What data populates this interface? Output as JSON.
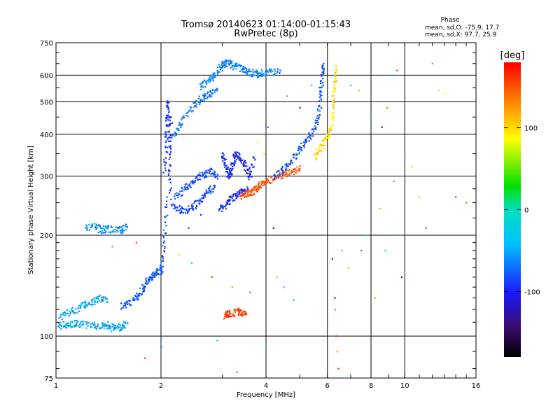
{
  "chart_data": {
    "type": "scatter",
    "title": "Tromsø 20140623 01:14:00-01:15:43",
    "subtitle": "RwPretec (8p)",
    "xlabel": "Frequency [MHz]",
    "ylabel": "Stationary phase Virtual Height [km]",
    "x_scale": "log",
    "y_scale": "log",
    "xlim": [
      1,
      16
    ],
    "ylim": [
      75,
      750
    ],
    "x_ticks": [
      "1",
      "2",
      "4",
      "6",
      "8",
      "10",
      "16"
    ],
    "y_ticks": [
      "75",
      "100",
      "200",
      "300",
      "400",
      "500",
      "600",
      "750"
    ],
    "grid": true,
    "stats": {
      "header": "Phase",
      "line_o": "mean, sd,O: -75.9, 17.7",
      "line_x": "mean, sd,X:  97.7, 25.9"
    },
    "colorbar": {
      "label": "[deg]",
      "ticks": [
        "100",
        "0",
        "-100"
      ],
      "range": [
        -180,
        180
      ],
      "colormap": "rainbow"
    },
    "traces": [
      {
        "phase": -50,
        "points": [
          [
            1.02,
            107
          ],
          [
            1.06,
            108
          ],
          [
            1.1,
            108
          ],
          [
            1.15,
            110
          ],
          [
            1.2,
            108
          ],
          [
            1.28,
            108
          ],
          [
            1.35,
            107
          ],
          [
            1.4,
            108
          ],
          [
            1.45,
            106
          ],
          [
            1.5,
            107
          ],
          [
            1.55,
            106
          ],
          [
            1.6,
            109
          ]
        ]
      },
      {
        "phase": -50,
        "points": [
          [
            1.03,
            115
          ],
          [
            1.08,
            118
          ],
          [
            1.15,
            120
          ],
          [
            1.2,
            124
          ],
          [
            1.25,
            126
          ],
          [
            1.3,
            128
          ],
          [
            1.35,
            130
          ],
          [
            1.4,
            129
          ]
        ]
      },
      {
        "phase": -60,
        "points": [
          [
            1.22,
            210
          ],
          [
            1.3,
            212
          ],
          [
            1.35,
            208
          ],
          [
            1.4,
            209
          ],
          [
            1.48,
            207
          ],
          [
            1.55,
            208
          ],
          [
            1.6,
            212
          ]
        ]
      },
      {
        "phase": -80,
        "points": [
          [
            1.55,
            123
          ],
          [
            1.62,
            125
          ],
          [
            1.7,
            130
          ],
          [
            1.75,
            136
          ],
          [
            1.8,
            142
          ],
          [
            1.85,
            148
          ],
          [
            1.9,
            152
          ],
          [
            1.95,
            155
          ],
          [
            2.0,
            157
          ],
          [
            2.02,
            165
          ],
          [
            2.05,
            200
          ],
          [
            2.08,
            260
          ]
        ]
      },
      {
        "phase": -90,
        "points": [
          [
            2.05,
            310
          ],
          [
            2.07,
            380
          ],
          [
            2.08,
            430
          ],
          [
            2.09,
            480
          ],
          [
            2.1,
            500
          ]
        ]
      },
      {
        "phase": -95,
        "points": [
          [
            2.12,
            270
          ],
          [
            2.12,
            340
          ],
          [
            2.12,
            400
          ],
          [
            2.14,
            450
          ]
        ]
      },
      {
        "phase": -85,
        "points": [
          [
            2.15,
            250
          ],
          [
            2.25,
            240
          ],
          [
            2.35,
            235
          ],
          [
            2.45,
            240
          ],
          [
            2.55,
            250
          ],
          [
            2.65,
            260
          ],
          [
            2.75,
            270
          ],
          [
            2.85,
            280
          ]
        ]
      },
      {
        "phase": -80,
        "points": [
          [
            2.2,
            260
          ],
          [
            2.3,
            270
          ],
          [
            2.4,
            280
          ],
          [
            2.5,
            290
          ],
          [
            2.6,
            300
          ],
          [
            2.7,
            305
          ],
          [
            2.8,
            310
          ],
          [
            2.9,
            300
          ]
        ]
      },
      {
        "phase": -70,
        "points": [
          [
            2.15,
            390
          ],
          [
            2.25,
            420
          ],
          [
            2.35,
            450
          ],
          [
            2.5,
            490
          ],
          [
            2.6,
            510
          ],
          [
            2.7,
            520
          ],
          [
            2.8,
            530
          ],
          [
            2.9,
            540
          ]
        ]
      },
      {
        "phase": -60,
        "points": [
          [
            2.6,
            555
          ],
          [
            2.7,
            575
          ],
          [
            2.8,
            590
          ],
          [
            2.85,
            600
          ]
        ]
      },
      {
        "phase": -65,
        "points": [
          [
            2.9,
            620
          ],
          [
            3.0,
            640
          ],
          [
            3.05,
            650
          ],
          [
            3.15,
            650
          ],
          [
            3.25,
            640
          ],
          [
            3.4,
            630
          ],
          [
            3.5,
            620
          ],
          [
            3.6,
            610
          ],
          [
            3.75,
            605
          ],
          [
            3.85,
            610
          ],
          [
            4.0,
            610
          ],
          [
            4.2,
            615
          ],
          [
            4.4,
            620
          ]
        ]
      },
      {
        "phase": -100,
        "points": [
          [
            3.0,
            350
          ],
          [
            3.05,
            330
          ],
          [
            3.1,
            310
          ],
          [
            3.15,
            300
          ],
          [
            3.2,
            320
          ],
          [
            3.25,
            340
          ],
          [
            3.3,
            350
          ],
          [
            3.4,
            335
          ],
          [
            3.5,
            320
          ],
          [
            3.6,
            300
          ],
          [
            3.7,
            340
          ]
        ]
      },
      {
        "phase": -95,
        "points": [
          [
            2.95,
            240
          ],
          [
            3.05,
            245
          ],
          [
            3.15,
            255
          ],
          [
            3.25,
            260
          ],
          [
            3.35,
            265
          ],
          [
            3.45,
            270
          ],
          [
            3.55,
            275
          ]
        ]
      },
      {
        "phase": 150,
        "points": [
          [
            3.4,
            262
          ],
          [
            3.5,
            264
          ],
          [
            3.6,
            268
          ],
          [
            3.7,
            272
          ],
          [
            3.8,
            278
          ],
          [
            3.9,
            285
          ],
          [
            4.0,
            290
          ],
          [
            4.2,
            295
          ],
          [
            4.4,
            300
          ],
          [
            4.6,
            305
          ],
          [
            4.8,
            310
          ],
          [
            5.0,
            315
          ]
        ]
      },
      {
        "phase": -80,
        "points": [
          [
            4.2,
            300
          ],
          [
            4.4,
            310
          ],
          [
            4.6,
            320
          ],
          [
            4.8,
            340
          ],
          [
            5.0,
            360
          ],
          [
            5.2,
            380
          ],
          [
            5.4,
            400
          ],
          [
            5.6,
            430
          ],
          [
            5.7,
            480
          ],
          [
            5.75,
            540
          ],
          [
            5.8,
            600
          ],
          [
            5.85,
            650
          ]
        ]
      },
      {
        "phase": 100,
        "points": [
          [
            5.5,
            340
          ],
          [
            5.7,
            360
          ],
          [
            5.9,
            380
          ],
          [
            6.1,
            400
          ],
          [
            6.2,
            450
          ],
          [
            6.25,
            520
          ],
          [
            6.3,
            580
          ],
          [
            6.35,
            640
          ]
        ]
      },
      {
        "phase": 160,
        "points": [
          [
            3.05,
            115
          ],
          [
            3.1,
            117
          ],
          [
            3.15,
            116
          ],
          [
            3.3,
            118
          ],
          [
            3.4,
            117
          ],
          [
            3.5,
            116
          ]
        ]
      }
    ],
    "scatter": [
      [
        1.8,
        86,
        170
      ],
      [
        2.0,
        93,
        -60
      ],
      [
        2.9,
        97,
        -40
      ],
      [
        3.3,
        78,
        150
      ],
      [
        4.0,
        94,
        -30
      ],
      [
        4.2,
        210,
        -100
      ],
      [
        4.5,
        140,
        -20
      ],
      [
        4.8,
        128,
        -40
      ],
      [
        6.2,
        170,
        -100
      ],
      [
        6.3,
        130,
        -110
      ],
      [
        6.35,
        100,
        170
      ],
      [
        6.4,
        90,
        120
      ],
      [
        6.45,
        80,
        165
      ],
      [
        6.3,
        120,
        150
      ],
      [
        6.6,
        180,
        -20
      ],
      [
        6.9,
        160,
        120
      ],
      [
        7.5,
        180,
        -60
      ],
      [
        7.8,
        200,
        -20
      ],
      [
        8.2,
        130,
        130
      ],
      [
        8.5,
        240,
        60
      ],
      [
        8.8,
        180,
        -10
      ],
      [
        9.0,
        200,
        -30
      ],
      [
        9.3,
        290,
        -50
      ],
      [
        9.8,
        150,
        -100
      ],
      [
        10.5,
        320,
        60
      ],
      [
        11.0,
        260,
        60
      ],
      [
        11.5,
        210,
        -60
      ],
      [
        12.0,
        650,
        140
      ],
      [
        12.5,
        540,
        100
      ],
      [
        13.0,
        530,
        80
      ],
      [
        14.0,
        260,
        -70
      ],
      [
        15.0,
        250,
        150
      ],
      [
        7.0,
        560,
        40
      ],
      [
        7.4,
        540,
        60
      ],
      [
        8.0,
        450,
        -30
      ],
      [
        8.6,
        420,
        -140
      ],
      [
        8.9,
        480,
        140
      ],
      [
        9.2,
        600,
        -60
      ],
      [
        9.5,
        620,
        160
      ],
      [
        10.0,
        350,
        40
      ],
      [
        2.6,
        230,
        -110
      ],
      [
        2.4,
        210,
        -90
      ],
      [
        3.8,
        380,
        80
      ],
      [
        3.95,
        350,
        100
      ],
      [
        4.05,
        420,
        -70
      ],
      [
        4.6,
        520,
        -40
      ],
      [
        5.0,
        480,
        -120
      ],
      [
        5.4,
        560,
        -30
      ],
      [
        1.45,
        185,
        -40
      ],
      [
        1.7,
        190,
        160
      ],
      [
        2.25,
        175,
        100
      ],
      [
        2.45,
        165,
        -20
      ],
      [
        2.8,
        150,
        150
      ],
      [
        3.2,
        140,
        50
      ],
      [
        3.6,
        135,
        -60
      ],
      [
        4.3,
        150,
        60
      ]
    ]
  }
}
